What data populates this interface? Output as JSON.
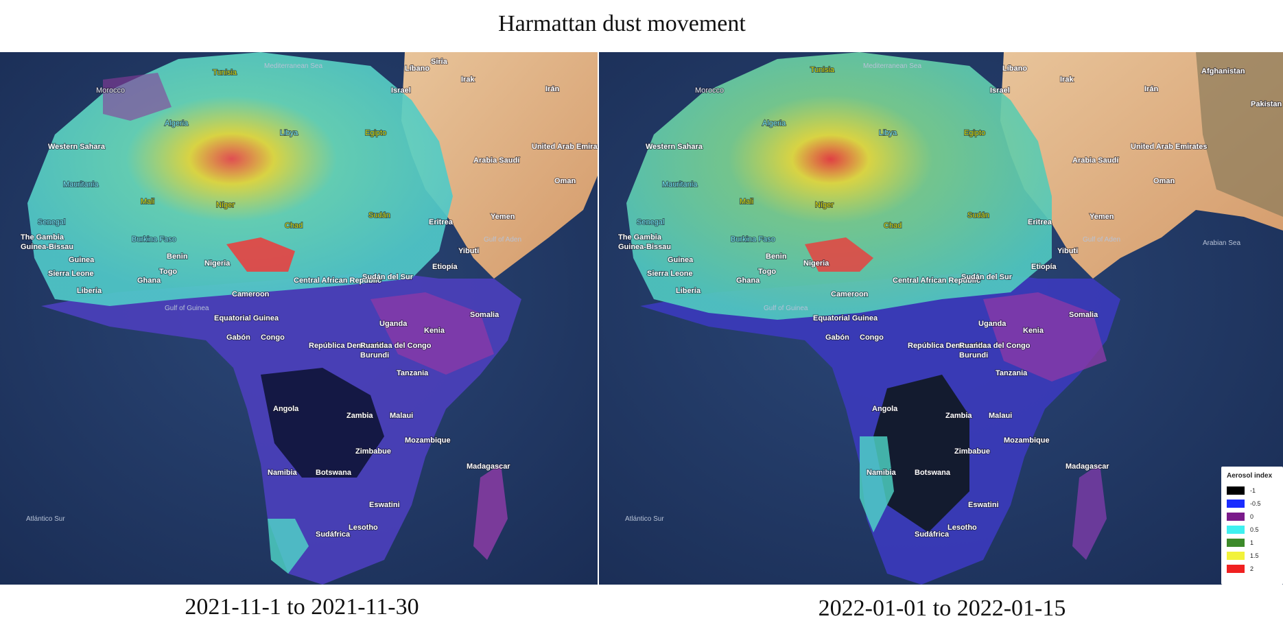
{
  "title": "Harmattan dust movement",
  "panels": [
    {
      "caption": "2021-11-1 to 2021-11-30",
      "labels": [
        "Mediterranean Sea",
        "Siria",
        "Tunisia",
        "Líbano",
        "Irak",
        "Israel",
        "Irán",
        "Morocco",
        "Algeria",
        "Libya",
        "Egipto",
        "Western Sahara",
        "Arabia Saudí",
        "United Arab Emirates",
        "Oman",
        "Mauritania",
        "Mali",
        "Níger",
        "Chad",
        "Sudán",
        "Eritrea",
        "Yemen",
        "Gulf of Aden",
        "Senegal",
        "The Gambia",
        "Guinea-Bissau",
        "Guinea",
        "Burkina Faso",
        "Benin",
        "Yibuti",
        "Sierra Leone",
        "Togo",
        "Nigeria",
        "Etiopía",
        "Ghana",
        "Liberia",
        "Central African Republic",
        "Sudán del Sur",
        "Cameroon",
        "Gulf of Guinea",
        "Somalia",
        "Equatorial Guinea",
        "Uganda",
        "Gabón",
        "Congo",
        "Kenia",
        "República Democrática del Congo",
        "Ruanda",
        "Burundi",
        "Tanzania",
        "Angola",
        "Zambia",
        "Malaui",
        "Mozambique",
        "Zimbabue",
        "Madagascar",
        "Namibia",
        "Botswana",
        "Atlántico Sur",
        "Eswatini",
        "Lesotho",
        "Sudáfrica"
      ]
    },
    {
      "caption": "2022-01-01 to 2022-01-15",
      "labels": [
        "Mediterranean Sea",
        "Tunisia",
        "Líbano",
        "Irak",
        "Israel",
        "Irán",
        "Afghanistan",
        "Pakistan",
        "Morocco",
        "Algeria",
        "Libya",
        "Egipto",
        "Western Sahara",
        "Arabia Saudí",
        "United Arab Emirates",
        "Oman",
        "Mauritania",
        "Mali",
        "Níger",
        "Chad",
        "Sudán",
        "Eritrea",
        "Yemen",
        "Gulf of Aden",
        "Arabian Sea",
        "Senegal",
        "The Gambia",
        "Guinea-Bissau",
        "Guinea",
        "Burkina Faso",
        "Benin",
        "Yibuti",
        "Sierra Leone",
        "Togo",
        "Nigeria",
        "Etiopía",
        "Ghana",
        "Liberia",
        "Central African Republic",
        "Sudán del Sur",
        "Cameroon",
        "Gulf of Guinea",
        "Somalia",
        "Equatorial Guinea",
        "Uganda",
        "Gabón",
        "Congo",
        "Kenia",
        "República Democrática del Congo",
        "Ruanda",
        "Burundi",
        "Tanzania",
        "Angola",
        "Zambia",
        "Malaui",
        "Mozambique",
        "Zimbabue",
        "Madagascar",
        "Namibia",
        "Botswana",
        "Atlántico Sur",
        "Eswatini",
        "Lesotho",
        "Sudáfrica"
      ]
    }
  ],
  "legend": {
    "title": "Aerosol index",
    "items": [
      {
        "value": "-1",
        "color": "#000000"
      },
      {
        "value": "-0.5",
        "color": "#1a2cff"
      },
      {
        "value": "0",
        "color": "#7a1a8a"
      },
      {
        "value": "0.5",
        "color": "#3ff0f0"
      },
      {
        "value": "1",
        "color": "#3c8a2a"
      },
      {
        "value": "1.5",
        "color": "#f2f23a"
      },
      {
        "value": "2",
        "color": "#f02020"
      }
    ]
  },
  "colors": {
    "ocean": "#233a66",
    "arabia_land": "#d9a77a"
  }
}
